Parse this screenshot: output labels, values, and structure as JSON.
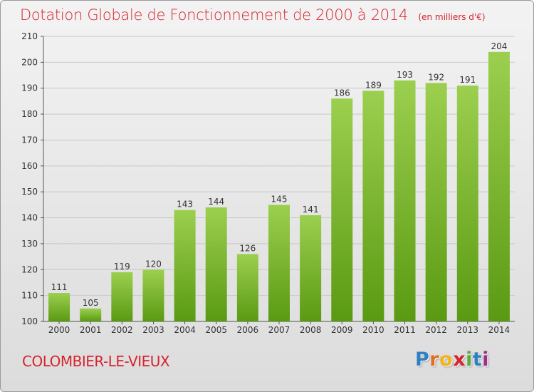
{
  "title": "Dotation Globale de Fonctionnement de 2000 à 2014",
  "subtitle": "(en milliers d'€)",
  "commune": "COLOMBIER-LE-VIEUX",
  "logo": {
    "letters": [
      "P",
      "r",
      "o",
      "x",
      "i",
      "t",
      "i"
    ]
  },
  "colors": {
    "accent": "#d6232d",
    "bar_top": "#9ccf4f",
    "bar_bottom": "#5a9a12",
    "grid": "#c8c8c8"
  },
  "chart_data": {
    "type": "bar",
    "categories": [
      "2000",
      "2001",
      "2002",
      "2003",
      "2004",
      "2005",
      "2006",
      "2007",
      "2008",
      "2009",
      "2010",
      "2011",
      "2012",
      "2013",
      "2014"
    ],
    "values": [
      111,
      105,
      119,
      120,
      143,
      144,
      126,
      145,
      141,
      186,
      189,
      193,
      192,
      191,
      204
    ],
    "ylim": [
      100,
      210
    ],
    "yticks": [
      100,
      110,
      120,
      130,
      140,
      150,
      160,
      170,
      180,
      190,
      200,
      210
    ],
    "grid": true,
    "data_labels": true
  }
}
